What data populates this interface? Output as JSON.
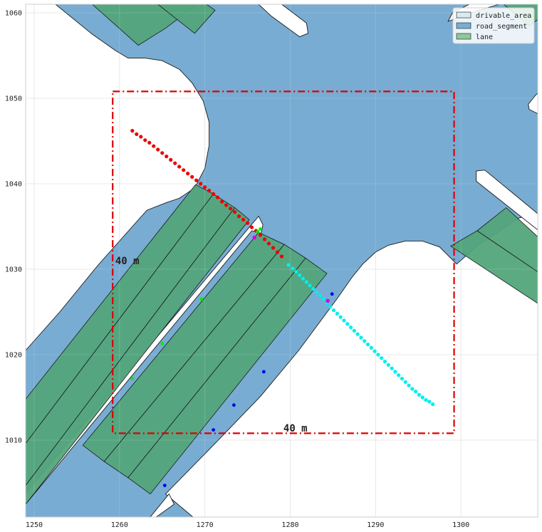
{
  "chart_data": {
    "type": "scatter",
    "title": "",
    "xlabel": "",
    "ylabel": "",
    "xlim": [
      1249,
      1309
    ],
    "ylim": [
      1001,
      1061
    ],
    "x_ticks": [
      1250,
      1260,
      1270,
      1280,
      1290,
      1300
    ],
    "y_ticks": [
      1010,
      1020,
      1030,
      1040,
      1050,
      1060
    ],
    "grid": true,
    "legend_position": "top-right",
    "legend": [
      {
        "label": "drivable_area",
        "color": "#d9eaf2"
      },
      {
        "label": "road_segment",
        "color": "#78aed3"
      },
      {
        "label": "lane",
        "color": "#8dc99a"
      }
    ],
    "colors": {
      "drivable_area": "#78acd2",
      "lane": "#53a57b",
      "box": "#dd0000",
      "past_trajectory": "#ee0000",
      "future_trajectory": "#00eeee",
      "lane_points": "#00ee00",
      "boundary_points": "#0000ee",
      "current_marker": "#dd00dd"
    },
    "annotations": [
      {
        "text": "40 m",
        "x": 1259.5,
        "y": 1030.6
      },
      {
        "text": "40 m",
        "x": 1279.2,
        "y": 1011.0
      }
    ],
    "box": {
      "x0": 1259.2,
      "x1": 1299.2,
      "y0": 1010.8,
      "y1": 1050.8
    },
    "drivable_area_polygon": [
      [
        1252.5,
        1061
      ],
      [
        1256.8,
        1057.5
      ],
      [
        1259.5,
        1055.6
      ],
      [
        1261,
        1054.7
      ],
      [
        1263,
        1054.7
      ],
      [
        1265,
        1054.4
      ],
      [
        1267,
        1053.4
      ],
      [
        1268.5,
        1051.8
      ],
      [
        1269.8,
        1049.7
      ],
      [
        1270.5,
        1047.2
      ],
      [
        1270.5,
        1044.5
      ],
      [
        1270,
        1041.8
      ],
      [
        1268.8,
        1039.5
      ],
      [
        1267,
        1038.3
      ],
      [
        1265.5,
        1037.8
      ],
      [
        1263.2,
        1036.9
      ],
      [
        1257.5,
        1030.5
      ],
      [
        1253,
        1025
      ],
      [
        1249,
        1020.5
      ],
      [
        1249,
        1001
      ],
      [
        1268.6,
        1001
      ],
      [
        1265.4,
        1003.7
      ],
      [
        1270.7,
        1009.1
      ],
      [
        1276.5,
        1015.1
      ],
      [
        1281,
        1020.5
      ],
      [
        1285.6,
        1026.7
      ],
      [
        1287.2,
        1029
      ],
      [
        1288.5,
        1030.6
      ],
      [
        1290,
        1032
      ],
      [
        1291.5,
        1032.8
      ],
      [
        1293.5,
        1033.3
      ],
      [
        1295.5,
        1033.3
      ],
      [
        1297.5,
        1032.6
      ],
      [
        1299.5,
        1030.6
      ],
      [
        1302,
        1032.8
      ],
      [
        1306.8,
        1036
      ],
      [
        1309,
        1036.5
      ],
      [
        1309,
        1061
      ]
    ],
    "white_islands": [
      [
        [
          1264.3,
          1001
        ],
        [
          1266.4,
          1002.5
        ],
        [
          1265.8,
          1003.7
        ],
        [
          1263.6,
          1001
        ]
      ],
      [
        [
          1279,
          1061
        ],
        [
          1281.9,
          1058.8
        ],
        [
          1282.1,
          1057.6
        ],
        [
          1281.1,
          1057.2
        ],
        [
          1277.8,
          1059.6
        ],
        [
          1276.3,
          1061
        ]
      ],
      [
        [
          1304.5,
          1061
        ],
        [
          1301.8,
          1060.2
        ],
        [
          1298.5,
          1059
        ],
        [
          1299,
          1060
        ],
        [
          1301,
          1061
        ]
      ],
      [
        [
          1308.7,
          1050.3
        ],
        [
          1307.9,
          1049.3
        ],
        [
          1308,
          1048.7
        ],
        [
          1309,
          1048.2
        ],
        [
          1309,
          1050.6
        ]
      ],
      [
        [
          1301.8,
          1041.5
        ],
        [
          1301.8,
          1040.3
        ],
        [
          1309,
          1034.6
        ],
        [
          1309,
          1036.5
        ],
        [
          1302.8,
          1041.6
        ]
      ],
      [
        [
          1249,
          1003.8
        ],
        [
          1276.3,
          1036.2
        ],
        [
          1276.8,
          1035.2
        ],
        [
          1276.6,
          1034.2
        ],
        [
          1275.5,
          1034.5
        ],
        [
          1249,
          1002.5
        ]
      ]
    ],
    "lanes": [
      [
        [
          1256.8,
          1061
        ],
        [
          1262.2,
          1056.2
        ],
        [
          1265.4,
          1058.2
        ],
        [
          1269.1,
          1061
        ]
      ],
      [
        [
          1264.5,
          1061
        ],
        [
          1268.8,
          1057.6
        ],
        [
          1271.2,
          1060.3
        ],
        [
          1270.2,
          1061
        ]
      ],
      [
        [
          1249,
          1014.8
        ],
        [
          1268.9,
          1039.9
        ],
        [
          1271,
          1038.8
        ],
        [
          1249,
          1009.6
        ]
      ],
      [
        [
          1249,
          1009.6
        ],
        [
          1271,
          1038.8
        ],
        [
          1273.5,
          1037.2
        ],
        [
          1249,
          1004.7
        ]
      ],
      [
        [
          1249,
          1004.7
        ],
        [
          1273.5,
          1037.2
        ],
        [
          1275.2,
          1035.8
        ],
        [
          1249,
          1002.5
        ]
      ],
      [
        [
          1255.7,
          1009.4
        ],
        [
          1276.3,
          1034.3
        ],
        [
          1279.3,
          1032.9
        ],
        [
          1258.2,
          1007.5
        ]
      ],
      [
        [
          1258.2,
          1007.5
        ],
        [
          1279.3,
          1032.9
        ],
        [
          1281.8,
          1031.3
        ],
        [
          1261,
          1005.6
        ]
      ],
      [
        [
          1261,
          1005.6
        ],
        [
          1281.8,
          1031.3
        ],
        [
          1284.3,
          1029.5
        ],
        [
          1263.6,
          1003.7
        ]
      ],
      [
        [
          1298.8,
          1032.7
        ],
        [
          1301.9,
          1034.5
        ],
        [
          1309,
          1029.7
        ],
        [
          1309,
          1026
        ]
      ],
      [
        [
          1301.9,
          1034.5
        ],
        [
          1305.3,
          1037.2
        ],
        [
          1309,
          1033.8
        ],
        [
          1309,
          1029.7
        ]
      ],
      [
        [
          1305,
          1061
        ],
        [
          1308,
          1058.5
        ],
        [
          1309,
          1059.2
        ],
        [
          1309,
          1061
        ]
      ]
    ],
    "series": [
      {
        "x": [
          1261.5,
          1262,
          1262.5,
          1263,
          1263.5,
          1264,
          1264.5,
          1265,
          1265.5,
          1266,
          1266.5,
          1267,
          1267.5,
          1268,
          1268.5,
          1269,
          1269.5,
          1270,
          1270.5,
          1271,
          1271.5,
          1272,
          1272.5,
          1273,
          1273.5,
          1274,
          1274.5,
          1275,
          1275.5,
          1276,
          1276.5,
          1277,
          1277.5,
          1278,
          1278.5,
          1279
        ],
        "y": [
          1046.2,
          1045.8,
          1045.5,
          1045.1,
          1044.8,
          1044.4,
          1044,
          1043.6,
          1043.2,
          1042.8,
          1042.4,
          1042,
          1041.6,
          1041.2,
          1040.8,
          1040.4,
          1040,
          1039.6,
          1039.2,
          1038.8,
          1038.4,
          1037.9,
          1037.5,
          1037.1,
          1036.7,
          1036.2,
          1035.8,
          1035.4,
          1034.9,
          1034.5,
          1034,
          1033.5,
          1033,
          1032.5,
          1032,
          1031.5
        ]
      },
      {
        "x": [
          1279.8,
          1280.3,
          1280.7,
          1281.1,
          1281.5,
          1281.9,
          1282.3,
          1282.7,
          1283.1,
          1283.5,
          1283.9,
          1284.3,
          1284.7,
          1285.1,
          1285.5,
          1285.9,
          1286.3,
          1286.7,
          1287.1,
          1287.5,
          1287.9,
          1288.3,
          1288.7,
          1289.1,
          1289.5,
          1289.9,
          1290.3,
          1290.7,
          1291.1,
          1291.5,
          1291.9,
          1292.3,
          1292.7,
          1293.1,
          1293.5,
          1293.9,
          1294.3,
          1294.7,
          1295.1,
          1295.5,
          1295.9,
          1296.3,
          1296.7
        ],
        "y": [
          1030.5,
          1030.1,
          1029.7,
          1029.3,
          1028.9,
          1028.5,
          1028.1,
          1027.7,
          1027.3,
          1026.9,
          1026.5,
          1026,
          1025.6,
          1025.2,
          1024.8,
          1024.4,
          1024,
          1023.6,
          1023.2,
          1022.8,
          1022.4,
          1022,
          1021.6,
          1021.2,
          1020.8,
          1020.4,
          1020,
          1019.6,
          1019.2,
          1018.8,
          1018.4,
          1018,
          1017.6,
          1017.2,
          1016.8,
          1016.4,
          1016,
          1015.7,
          1015.3,
          1015,
          1014.7,
          1014.5,
          1014.2
        ]
      },
      {
        "x": [
          1276.2,
          1276.5,
          1269.6,
          1265,
          1261.5
        ],
        "y": [
          1034.4,
          1034.7,
          1026.5,
          1021.3,
          1017.2
        ]
      },
      {
        "x": [
          1284.9,
          1276.9,
          1273.4,
          1271,
          1265.3
        ],
        "y": [
          1027.1,
          1018,
          1014.1,
          1011.2,
          1004.7
        ]
      },
      {
        "x": [
          1275.8,
          1284.4
        ],
        "y": [
          1033.7,
          1026.3
        ]
      }
    ]
  }
}
